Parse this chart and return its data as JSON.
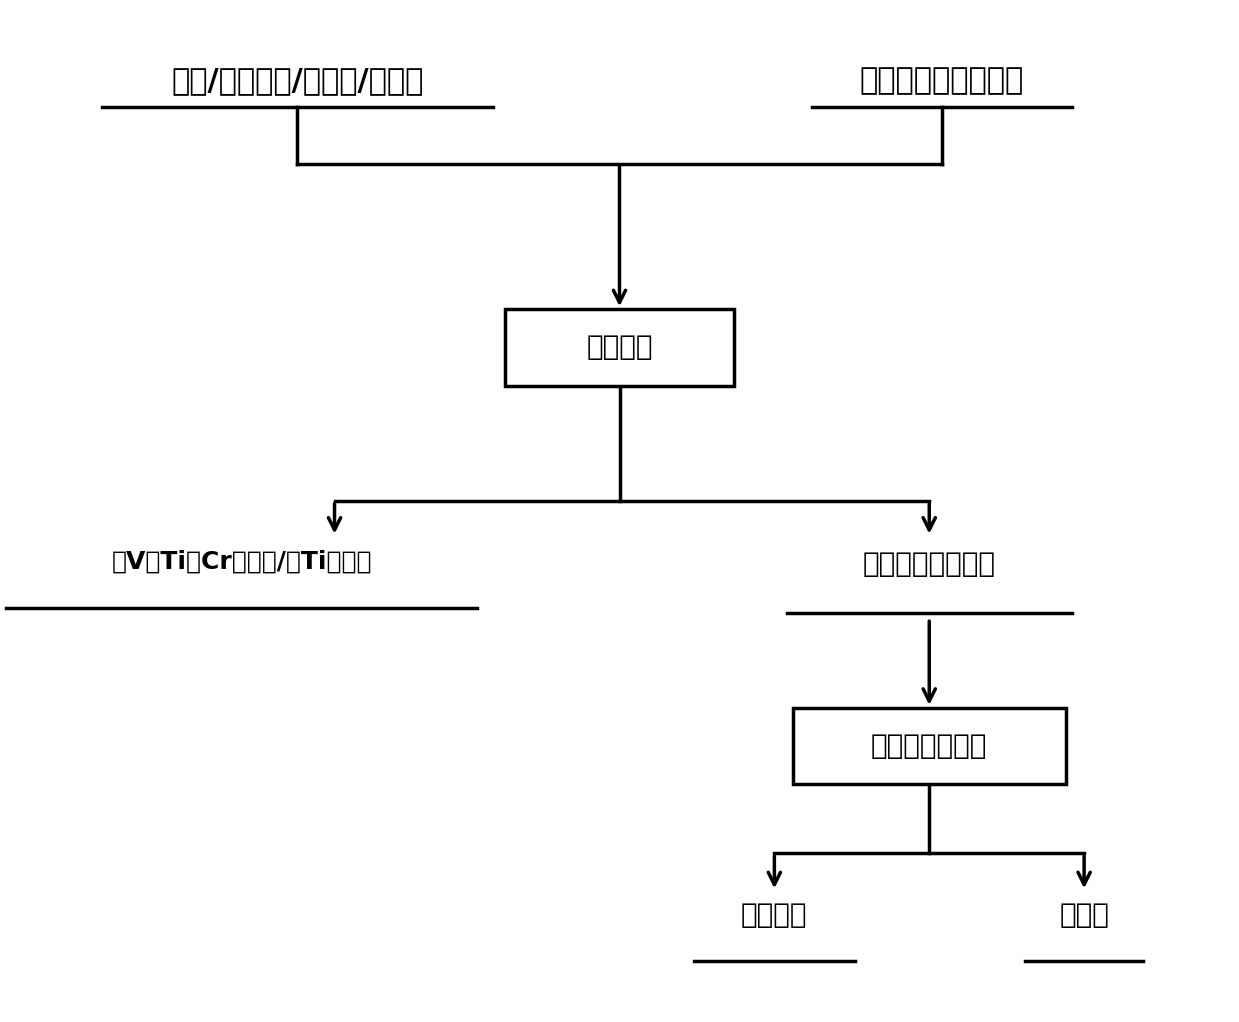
{
  "bg_color": "#ffffff",
  "text_color": "#000000",
  "box_color": "#ffffff",
  "box_edge_color": "#000000",
  "line_color": "#000000",
  "top_left_text": "钒渣/提钒尾渣/混合渣/钓精矿",
  "top_right_text": "有机酸（优选草酸）",
  "box1_text": "浸出反应",
  "left_label_text": "含V、Ti、Cr浸出液/含Ti浸出液",
  "right_label_text": "草酸亚铁和浸出渣",
  "box2_text": "重力或离心分离",
  "bottom_left_text": "草酸亚铁",
  "bottom_right_text": "浸出渣",
  "figsize": [
    12.39,
    10.22
  ],
  "dpi": 100,
  "fontsize_large": 22,
  "fontsize_medium": 20,
  "fontsize_small": 18,
  "lw": 2.5
}
